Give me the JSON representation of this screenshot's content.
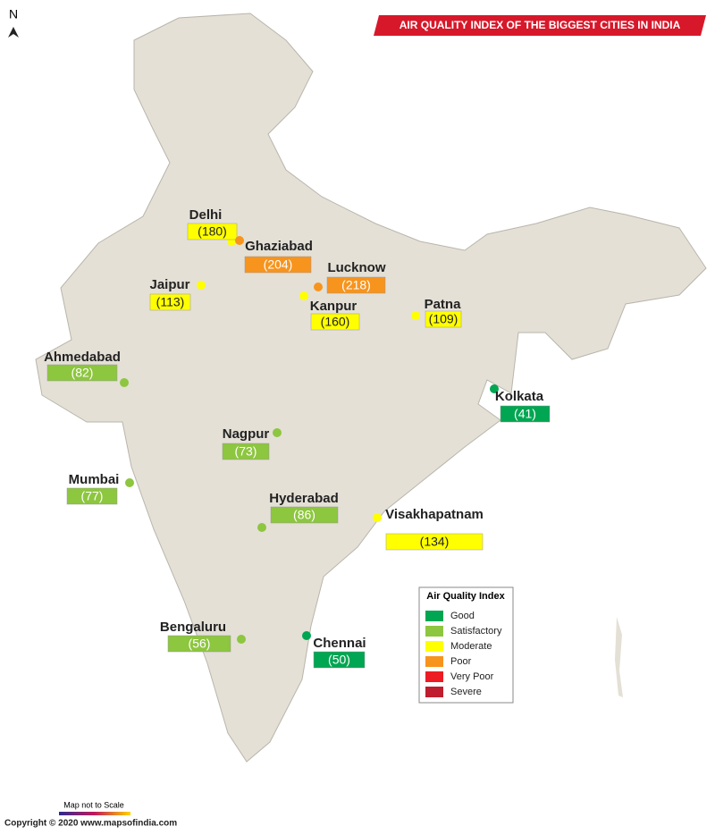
{
  "header": {
    "title": "AIR QUALITY INDEX OF THE BIGGEST CITIES IN INDIA",
    "north": "N"
  },
  "cities": [
    {
      "name": "Delhi",
      "aqi": "(180)",
      "color": "#ffff00"
    },
    {
      "name": "Ghaziabad",
      "aqi": "(204)",
      "color": "#f7941d"
    },
    {
      "name": "Lucknow",
      "aqi": "(218)",
      "color": "#f7941d"
    },
    {
      "name": "Kanpur",
      "aqi": "(160)",
      "color": "#ffff00"
    },
    {
      "name": "Jaipur",
      "aqi": "(113)",
      "color": "#ffff00"
    },
    {
      "name": "Patna",
      "aqi": "(109)",
      "color": "#ffff00"
    },
    {
      "name": "Ahmedabad",
      "aqi": "(82)",
      "color": "#8dc63f"
    },
    {
      "name": "Kolkata",
      "aqi": "(41)",
      "color": "#00a651"
    },
    {
      "name": "Nagpur",
      "aqi": "(73)",
      "color": "#8dc63f"
    },
    {
      "name": "Mumbai",
      "aqi": "(77)",
      "color": "#8dc63f"
    },
    {
      "name": "Hyderabad",
      "aqi": "(86)",
      "color": "#8dc63f"
    },
    {
      "name": "Visakhapatnam",
      "aqi": "(134)",
      "color": "#ffff00"
    },
    {
      "name": "Bengaluru",
      "aqi": "(56)",
      "color": "#8dc63f"
    },
    {
      "name": "Chennai",
      "aqi": "(50)",
      "color": "#00a651"
    }
  ],
  "legend": {
    "title": "Air Quality Index",
    "items": [
      {
        "label": "Good",
        "color": "#00a651"
      },
      {
        "label": "Satisfactory",
        "color": "#8dc63f"
      },
      {
        "label": "Moderate",
        "color": "#ffff00"
      },
      {
        "label": "Poor",
        "color": "#f7941d"
      },
      {
        "label": "Very Poor",
        "color": "#ed1c24"
      },
      {
        "label": "Severe",
        "color": "#be1e2d"
      }
    ]
  },
  "footer": {
    "scale_note": "Map not to Scale",
    "copyright": "Copyright © 2020 www.mapsofindia.com"
  }
}
